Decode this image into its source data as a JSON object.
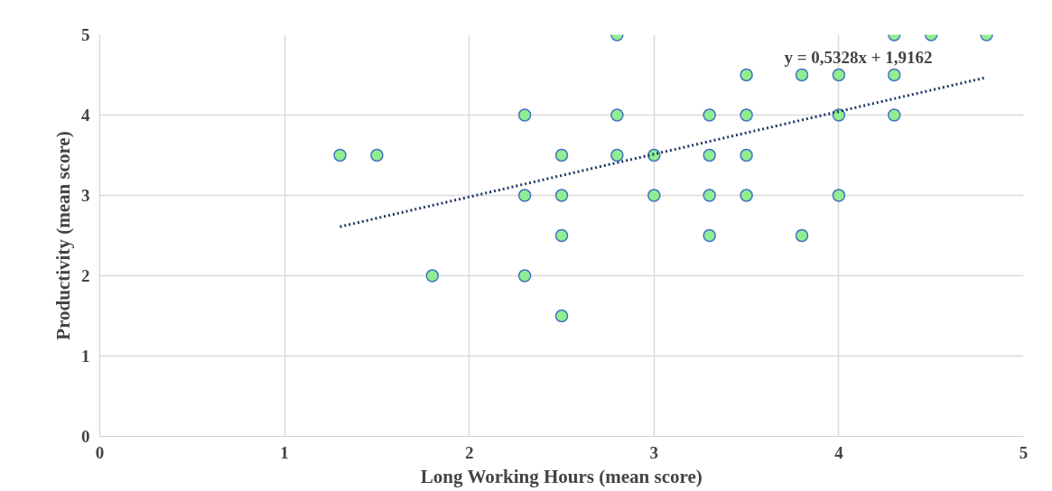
{
  "chart_data": {
    "type": "scatter",
    "xlabel": "Long Working Hours (mean score)",
    "ylabel": "Productivity (mean score)",
    "xlim": [
      0,
      5
    ],
    "ylim": [
      0,
      5
    ],
    "xticks": [
      0,
      1,
      2,
      3,
      4,
      5
    ],
    "yticks": [
      0,
      1,
      2,
      3,
      4,
      5
    ],
    "grid": true,
    "series": [
      {
        "color": "#90ee90",
        "marker": "circle",
        "x": [
          1.3,
          1.5,
          1.8,
          2.3,
          2.3,
          2.3,
          2.5,
          2.5,
          2.5,
          2.5,
          2.8,
          2.8,
          2.8,
          3,
          3,
          3.3,
          3.3,
          3.3,
          3.3,
          3.5,
          3.5,
          3.5,
          3.5,
          3.8,
          3.8,
          4,
          4,
          4,
          4.3,
          4.3,
          4.3,
          4.5,
          4.8
        ],
        "values": [
          3.5,
          3.5,
          2,
          4,
          3,
          2,
          3.5,
          3,
          2.5,
          1.5,
          5,
          4,
          3.5,
          3.5,
          3,
          4,
          3.5,
          3,
          2.5,
          4.5,
          4,
          3.5,
          3,
          4.5,
          2.5,
          4.5,
          4,
          3,
          5,
          4.5,
          4,
          5,
          5
        ]
      },
      {
        "type": "line",
        "color": "#1f3864",
        "line_style": "dotted",
        "marker": "none",
        "x": [
          1.3,
          4.8
        ],
        "values": [
          2.61,
          4.47
        ]
      }
    ],
    "annotations": [
      "y = 0,5328x + 1,9162"
    ]
  }
}
